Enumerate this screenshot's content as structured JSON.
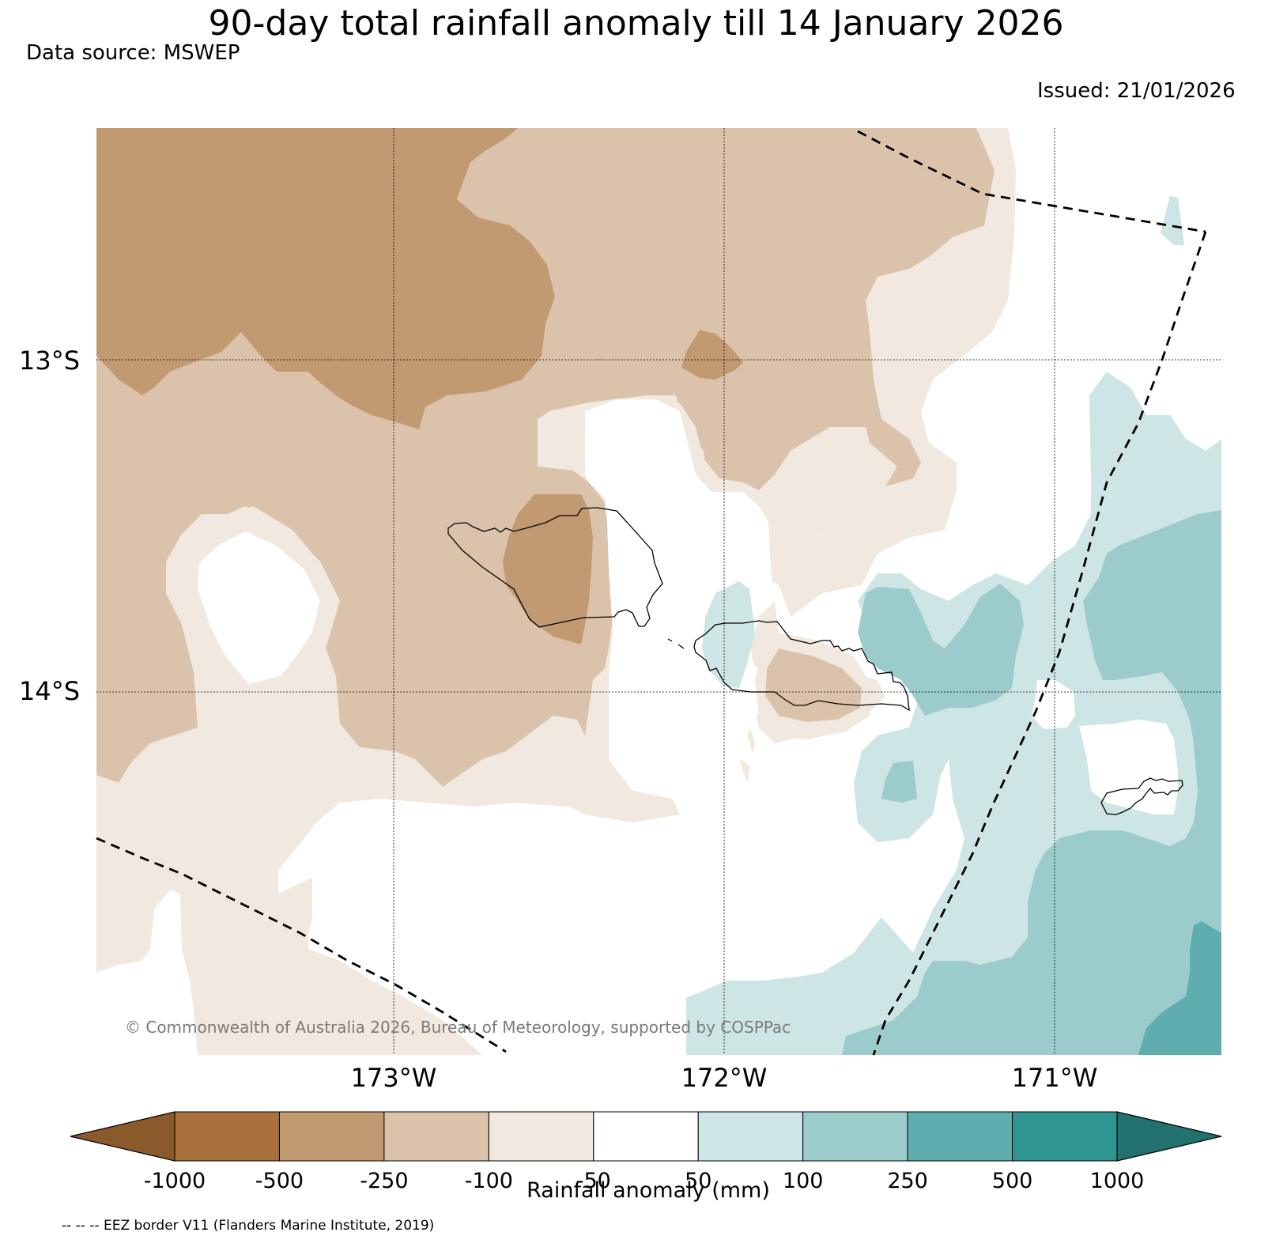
{
  "title": "90-day total rainfall anomaly till 14 January 2026",
  "data_source": "Data source: MSWEP",
  "issued": "Issued: 21/01/2026",
  "copyright": "© Commonwealth of Australia 2026, Bureau of Meteorology, supported by COSPPac",
  "lat_labels": [
    "13°S",
    "14°S"
  ],
  "lon_labels": [
    "173°W",
    "172°W",
    "171°W"
  ],
  "colorbar": {
    "title": "Rainfall anomaly (mm)",
    "ticks": [
      "-1000",
      "-500",
      "-250",
      "-100",
      "-50",
      "50",
      "100",
      "250",
      "500",
      "1000"
    ],
    "colors": [
      "#8b5a2b",
      "#a9713d",
      "#c29a72",
      "#dbc3ab",
      "#f1e8df",
      "#ffffff",
      "#cde5e4",
      "#9bcbcb",
      "#5fadac",
      "#2e9590",
      "#23716e"
    ]
  },
  "legend_note": "-- -- -- EEZ border V11 (Flanders Marine Institute, 2019)",
  "palette": {
    "dark_brown": "#c29a72",
    "mid_brown": "#dbc3ab",
    "light_brown": "#f1e8df",
    "light_teal": "#cde5e4",
    "mid_teal": "#9bcbcb",
    "dark_teal": "#5fadac"
  }
}
